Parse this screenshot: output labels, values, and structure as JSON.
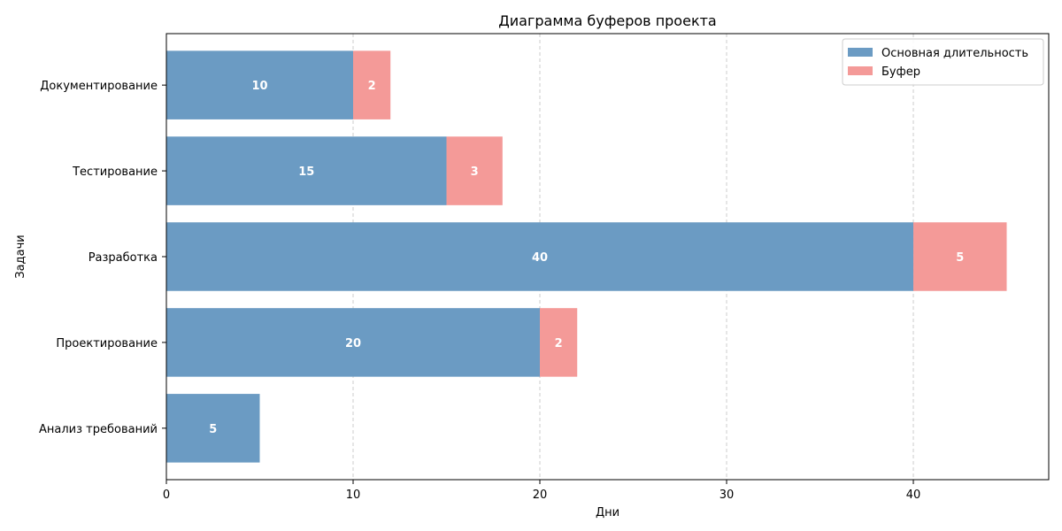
{
  "chart_data": {
    "type": "bar",
    "orientation": "horizontal",
    "stacked": true,
    "title": "Диаграмма буферов проекта",
    "xlabel": "Дни",
    "ylabel": "Задачи",
    "categories": [
      "Анализ требований",
      "Проектирование",
      "Разработка",
      "Тестирование",
      "Документирование"
    ],
    "series": [
      {
        "name": "Основная длительность",
        "values": [
          5,
          20,
          40,
          15,
          10
        ],
        "color": "#6b9bc3"
      },
      {
        "name": "Буфер",
        "values": [
          0,
          2,
          5,
          3,
          2
        ],
        "color": "#f49a98"
      }
    ],
    "xlim": [
      0,
      47.25
    ],
    "xticks": [
      0,
      10,
      20,
      30,
      40
    ],
    "grid": {
      "x": true,
      "y": false,
      "style": "dashed"
    },
    "legend_position": "top-right",
    "data_labels": true
  }
}
